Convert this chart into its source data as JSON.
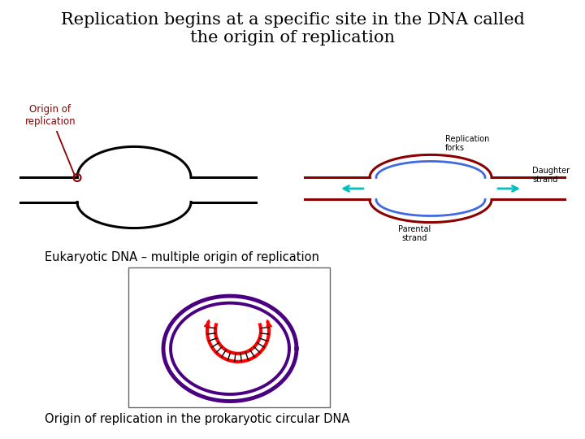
{
  "title": "Replication begins at a specific site in the DNA called\nthe origin of replication",
  "title_bg": "#90EE90",
  "title_color": "#000000",
  "title_fontsize": 15,
  "label1": "Eukaryotic DNA – multiple origin of replication",
  "label2": "Origin of replication in the prokaryotic circular DNA",
  "origin_label": "Origin of\nreplication",
  "origin_label_color": "#8B0000",
  "replication_forks_label": "Replication\nforks",
  "parental_strand_label": "Parental\nstrand",
  "daughter_strand_label": "Daughter\nstrand",
  "bg_color": "#ffffff",
  "purple": "#4B0082",
  "dark_red": "#8B0000",
  "blue_strand": "#4169E1",
  "arrow_cyan": "#00BFBF"
}
